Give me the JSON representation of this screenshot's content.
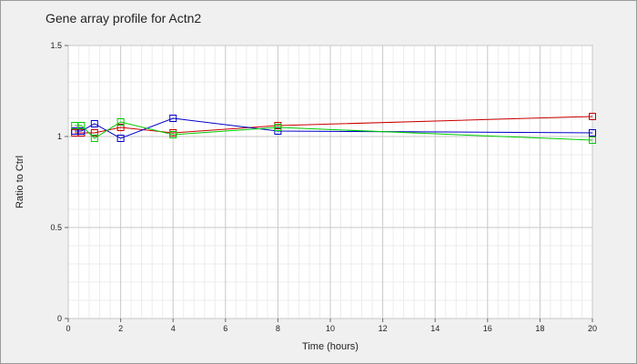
{
  "chart_data": {
    "type": "line",
    "title": "Gene array profile for Actn2",
    "xlabel": "Time (hours)",
    "ylabel": "Ratio to Ctrl",
    "xlim": [
      0,
      20
    ],
    "ylim": [
      0,
      1.5
    ],
    "x_ticks": [
      0,
      2,
      4,
      6,
      8,
      10,
      12,
      14,
      16,
      18,
      20
    ],
    "y_ticks": [
      0,
      0.5,
      1,
      1.5
    ],
    "grid": true,
    "legend": "none",
    "series": [
      {
        "color": "#cc0000",
        "marker": "square",
        "points": [
          [
            0.25,
            1.02
          ],
          [
            0.5,
            1.02
          ],
          [
            1,
            1.02
          ],
          [
            2,
            1.05
          ],
          [
            4,
            1.02
          ],
          [
            8,
            1.06
          ],
          [
            20,
            1.11
          ]
        ]
      },
      {
        "color": "#0000cc",
        "marker": "square",
        "points": [
          [
            0.25,
            1.03
          ],
          [
            0.5,
            1.03
          ],
          [
            1,
            1.07
          ],
          [
            2,
            0.99
          ],
          [
            4,
            1.1
          ],
          [
            8,
            1.03
          ],
          [
            20,
            1.02
          ]
        ]
      },
      {
        "color": "#00cc00",
        "marker": "square",
        "points": [
          [
            0.25,
            1.06
          ],
          [
            0.5,
            1.06
          ],
          [
            1,
            0.99
          ],
          [
            2,
            1.08
          ],
          [
            4,
            1.01
          ],
          [
            8,
            1.05
          ],
          [
            20,
            0.98
          ]
        ]
      }
    ]
  }
}
